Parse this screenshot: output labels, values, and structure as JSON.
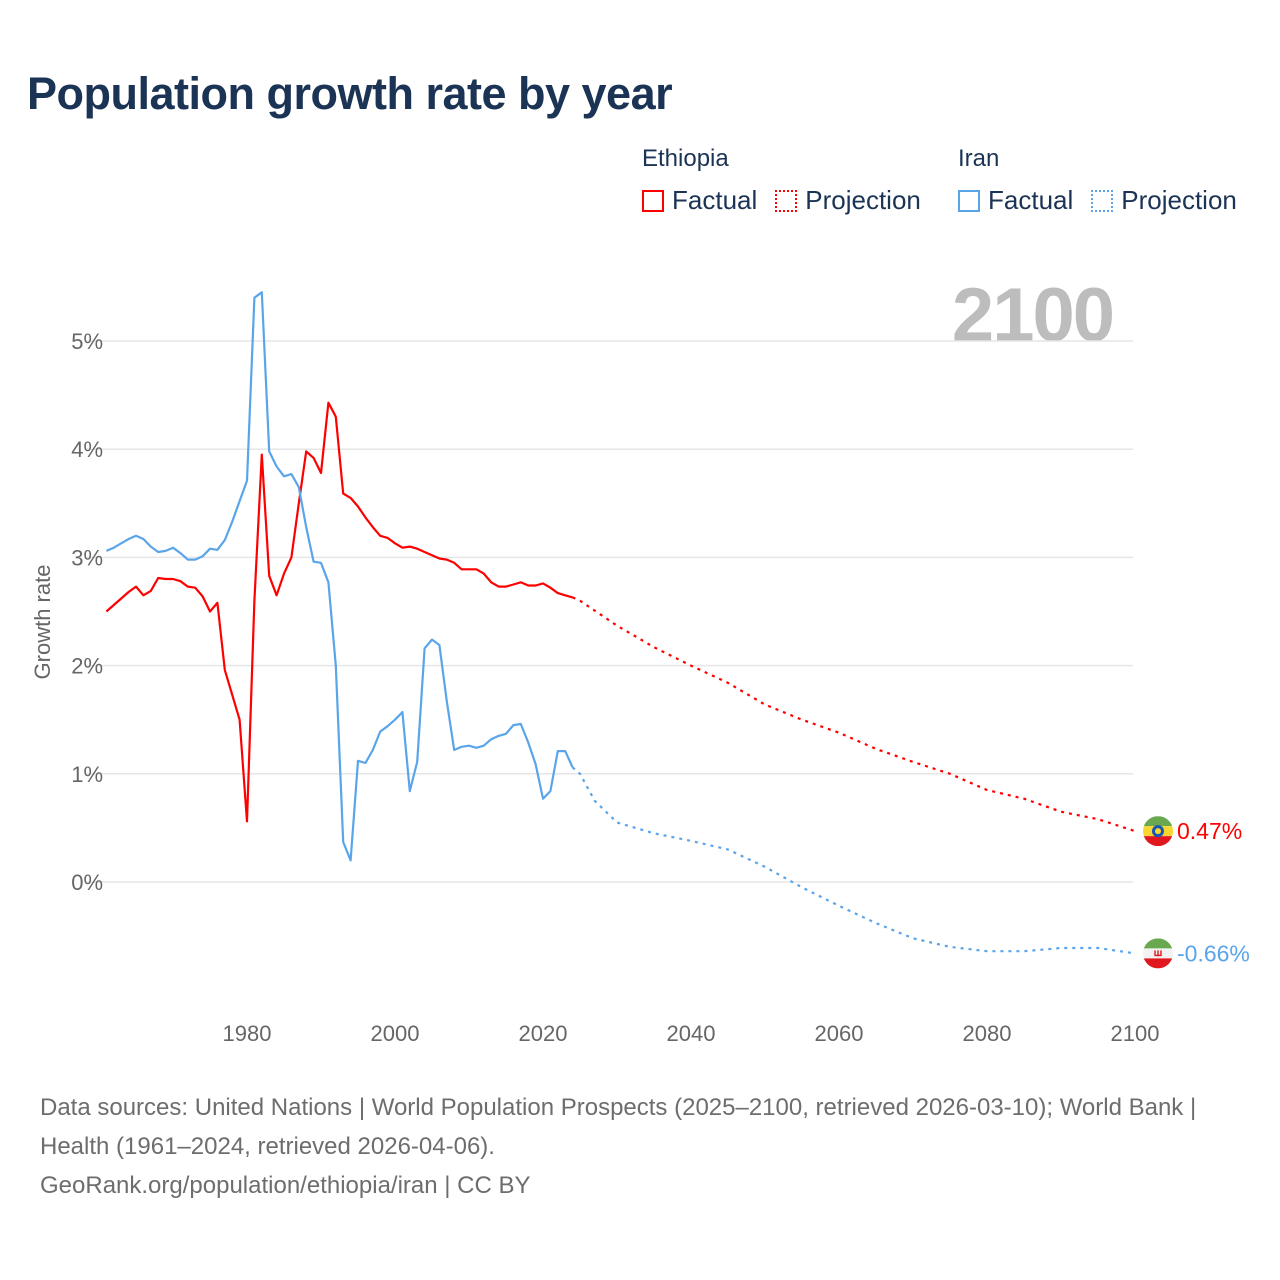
{
  "chart_data": {
    "type": "line",
    "title": "Population growth rate by year",
    "ylabel": "Growth rate",
    "xlabel": "",
    "xlim": [
      1961,
      2100
    ],
    "ylim": [
      -0.9,
      5.6
    ],
    "x_ticks": [
      1980,
      2000,
      2020,
      2040,
      2060,
      2080,
      2100
    ],
    "x_tick_labels": [
      "1980",
      "2000",
      "2020",
      "2040",
      "2060",
      "2080",
      "2100"
    ],
    "y_ticks": [
      0,
      1,
      2,
      3,
      4,
      5
    ],
    "y_tick_labels": [
      "0%",
      "1%",
      "2%",
      "3%",
      "4%",
      "5%"
    ],
    "grid": true,
    "current_year_label": "2100",
    "legend": {
      "placement": "top-right",
      "groups": [
        {
          "country": "Ethiopia",
          "factual": "Factual",
          "projection": "Projection",
          "color": "#ff0000"
        },
        {
          "country": "Iran",
          "factual": "Factual",
          "projection": "Projection",
          "color": "#5aa5ea"
        }
      ]
    },
    "series": [
      {
        "name": "Ethiopia",
        "color": "#ff0000",
        "end_label": "0.47%",
        "flag": "ethiopia-flag",
        "factual": {
          "x": [
            1961,
            1962,
            1963,
            1964,
            1965,
            1966,
            1967,
            1968,
            1969,
            1970,
            1971,
            1972,
            1973,
            1974,
            1975,
            1976,
            1977,
            1978,
            1979,
            1980,
            1981,
            1982,
            1983,
            1984,
            1985,
            1986,
            1987,
            1988,
            1989,
            1990,
            1991,
            1992,
            1993,
            1994,
            1995,
            1996,
            1997,
            1998,
            1999,
            2000,
            2001,
            2002,
            2003,
            2004,
            2005,
            2006,
            2007,
            2008,
            2009,
            2010,
            2011,
            2012,
            2013,
            2014,
            2015,
            2016,
            2017,
            2018,
            2019,
            2020,
            2021,
            2022,
            2023,
            2024
          ],
          "y": [
            2.5,
            2.56,
            2.62,
            2.68,
            2.73,
            2.65,
            2.69,
            2.81,
            2.8,
            2.8,
            2.78,
            2.73,
            2.72,
            2.64,
            2.5,
            2.58,
            1.96,
            1.73,
            1.5,
            0.56,
            2.6,
            3.95,
            2.83,
            2.65,
            2.85,
            3.0,
            3.5,
            3.98,
            3.92,
            3.78,
            4.43,
            4.3,
            3.59,
            3.55,
            3.47,
            3.37,
            3.28,
            3.2,
            3.18,
            3.13,
            3.09,
            3.1,
            3.08,
            3.05,
            3.02,
            2.99,
            2.98,
            2.95,
            2.89,
            2.89,
            2.89,
            2.85,
            2.77,
            2.73,
            2.73,
            2.75,
            2.77,
            2.74,
            2.74,
            2.76,
            2.72,
            2.67,
            2.65,
            2.63
          ]
        },
        "projection": {
          "x": [
            2024,
            2025,
            2030,
            2035,
            2040,
            2045,
            2050,
            2055,
            2060,
            2065,
            2070,
            2075,
            2080,
            2085,
            2090,
            2095,
            2100
          ],
          "y": [
            2.63,
            2.6,
            2.37,
            2.17,
            2.0,
            1.84,
            1.64,
            1.5,
            1.38,
            1.23,
            1.11,
            1.0,
            0.85,
            0.77,
            0.65,
            0.58,
            0.47
          ]
        }
      },
      {
        "name": "Iran",
        "color": "#5aa5ea",
        "end_label": "-0.66%",
        "flag": "iran-flag",
        "factual": {
          "x": [
            1961,
            1962,
            1963,
            1964,
            1965,
            1966,
            1967,
            1968,
            1969,
            1970,
            1971,
            1972,
            1973,
            1974,
            1975,
            1976,
            1977,
            1978,
            1979,
            1980,
            1981,
            1982,
            1983,
            1984,
            1985,
            1986,
            1987,
            1988,
            1989,
            1990,
            1991,
            1992,
            1993,
            1994,
            1995,
            1996,
            1997,
            1998,
            1999,
            2000,
            2001,
            2002,
            2003,
            2004,
            2005,
            2006,
            2007,
            2008,
            2009,
            2010,
            2011,
            2012,
            2013,
            2014,
            2015,
            2016,
            2017,
            2018,
            2019,
            2020,
            2021,
            2022,
            2023,
            2024
          ],
          "y": [
            3.06,
            3.09,
            3.13,
            3.17,
            3.2,
            3.17,
            3.1,
            3.05,
            3.06,
            3.09,
            3.04,
            2.98,
            2.98,
            3.01,
            3.08,
            3.07,
            3.16,
            3.33,
            3.52,
            3.71,
            5.4,
            5.45,
            3.98,
            3.84,
            3.75,
            3.77,
            3.65,
            3.28,
            2.96,
            2.95,
            2.77,
            2.0,
            0.37,
            0.2,
            1.12,
            1.1,
            1.22,
            1.39,
            1.44,
            1.5,
            1.57,
            0.84,
            1.11,
            2.16,
            2.24,
            2.19,
            1.67,
            1.22,
            1.25,
            1.26,
            1.24,
            1.26,
            1.32,
            1.35,
            1.37,
            1.45,
            1.46,
            1.29,
            1.09,
            0.77,
            0.84,
            1.21,
            1.21,
            1.06
          ]
        },
        "projection": {
          "x": [
            2024,
            2025,
            2027,
            2030,
            2035,
            2040,
            2045,
            2050,
            2055,
            2060,
            2065,
            2070,
            2075,
            2080,
            2085,
            2090,
            2095,
            2100
          ],
          "y": [
            1.06,
            1.0,
            0.75,
            0.55,
            0.45,
            0.38,
            0.3,
            0.14,
            -0.05,
            -0.22,
            -0.38,
            -0.52,
            -0.6,
            -0.64,
            -0.64,
            -0.61,
            -0.61,
            -0.66
          ]
        }
      }
    ]
  },
  "footer": {
    "sources": "Data sources: United Nations | World Population Prospects (2025–2100, retrieved 2026-03-10); World Bank | Health (1961–2024, retrieved 2026-04-06).",
    "credit": "GeoRank.org/population/ethiopia/iran | CC BY"
  }
}
